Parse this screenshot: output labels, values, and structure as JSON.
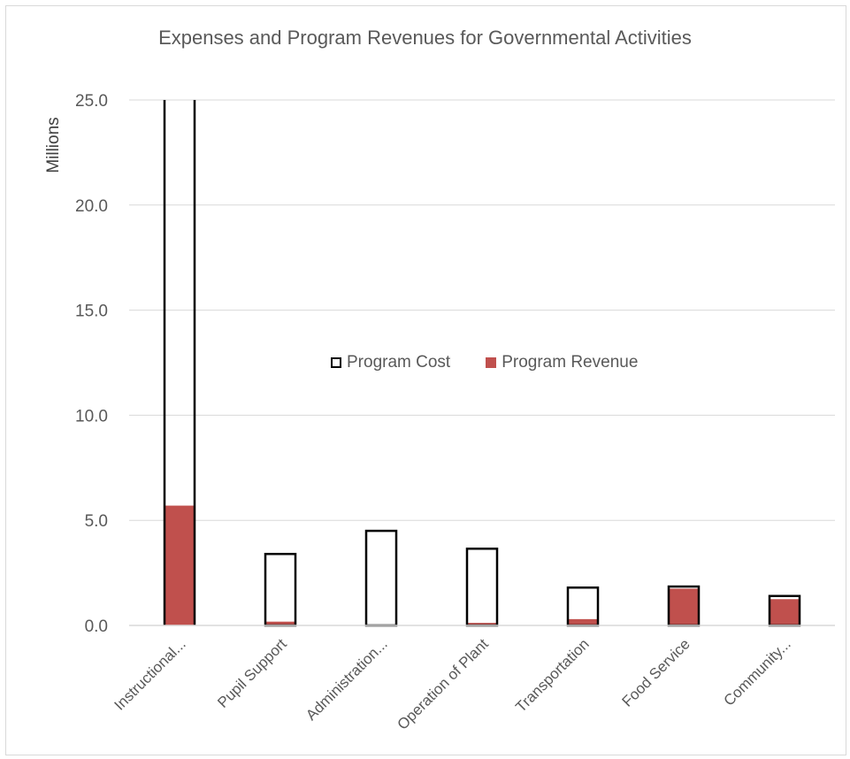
{
  "colors": {
    "cost_border": "#000000",
    "cost_fill": "#ffffff",
    "revenue_fill": "#c0504d",
    "gridline": "#d9d9d9",
    "axis_text": "#595959"
  },
  "chart_data": {
    "type": "bar",
    "title": "Expenses and Program Revenues for Governmental Activities",
    "xlabel": "",
    "ylabel": "Millions",
    "ylim": [
      0,
      25
    ],
    "yticks": [
      "0.0",
      "5.0",
      "10.0",
      "15.0",
      "20.0",
      "25.0"
    ],
    "grid": true,
    "legend_position": "center",
    "categories": [
      "Instructional...",
      "Pupil Support",
      "Administration...",
      "Operation of Plant",
      "Transportation",
      "Food Service",
      "Community..."
    ],
    "series": [
      {
        "name": "Program Cost",
        "values": [
          25.0,
          3.4,
          4.5,
          3.65,
          1.8,
          1.85,
          1.4
        ]
      },
      {
        "name": "Program Revenue",
        "values": [
          5.7,
          0.18,
          0.0,
          0.12,
          0.3,
          1.75,
          1.25
        ]
      }
    ]
  }
}
